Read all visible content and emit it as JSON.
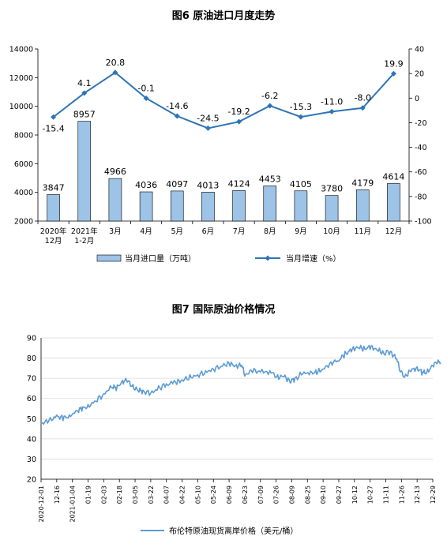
{
  "chart_data": [
    {
      "type": "bar",
      "title": "图6  原油进口月度走势",
      "categories": [
        [
          "2020年",
          "12月"
        ],
        [
          "2021年",
          "1-2月"
        ],
        [
          "3月"
        ],
        [
          "4月"
        ],
        [
          "5月"
        ],
        [
          "6月"
        ],
        [
          "7月"
        ],
        [
          "8月"
        ],
        [
          "9月"
        ],
        [
          "10月"
        ],
        [
          "11月"
        ],
        [
          "12月"
        ]
      ],
      "ylim": [
        2000,
        14000
      ],
      "yticks": [
        2000,
        4000,
        6000,
        8000,
        10000,
        12000,
        14000
      ],
      "y2lim": [
        -100,
        40
      ],
      "y2ticks": [
        -100,
        -80,
        -60,
        -40,
        -20,
        0,
        20,
        40
      ],
      "series": [
        {
          "name": "当月进口量（万吨）",
          "kind": "bar",
          "axis": "left",
          "color": "#9DC3E6",
          "values": [
            3847,
            8957,
            4966,
            4036,
            4097,
            4013,
            4124,
            4453,
            4105,
            3780,
            4179,
            4614
          ],
          "labels": [
            "3847",
            "8957",
            "4966",
            "4036",
            "4097",
            "4013",
            "4124",
            "4453",
            "4105",
            "3780",
            "4179",
            "4614"
          ]
        },
        {
          "name": "当月增速（%）",
          "kind": "line",
          "axis": "right",
          "color": "#2E75B6",
          "values": [
            -15.4,
            4.1,
            20.8,
            -0.1,
            -14.6,
            -24.5,
            -19.2,
            -6.2,
            -15.3,
            -11.0,
            -8.0,
            19.9
          ],
          "labels": [
            "-15.4",
            "4.1",
            "20.8",
            "-0.1",
            "-14.6",
            "-24.5",
            "-19.2",
            "-6.2",
            "-15.3",
            "-11.0",
            "-8.0",
            "19.9"
          ]
        }
      ],
      "legend": "bottom",
      "grid": false
    },
    {
      "type": "line",
      "title": "图7  国际原油价格情况",
      "ylim": [
        20,
        90
      ],
      "yticks": [
        20,
        30,
        40,
        50,
        60,
        70,
        80,
        90
      ],
      "grid": true,
      "legend": "bottom",
      "x_ticks": [
        "2020-12-01",
        "12-16",
        "2021-01-04",
        "01-19",
        "02-03",
        "02-18",
        "03-05",
        "03-22",
        "04-07",
        "04-22",
        "05-10",
        "05-24",
        "06-09",
        "06-23",
        "07-09",
        "07-26",
        "08-09",
        "08-25",
        "09-10",
        "09-27",
        "10-12",
        "10-27",
        "11-11",
        "11-26",
        "12-13",
        "12-29"
      ],
      "series": [
        {
          "name": "布伦特原油现货离岸价格（美元/桶）",
          "color": "#5B9BD5",
          "anchors": [
            [
              0,
              47.5
            ],
            [
              0.5,
              49
            ],
            [
              1,
              51
            ],
            [
              1.4,
              50.5
            ],
            [
              1.8,
              51
            ],
            [
              2.3,
              54
            ],
            [
              2.6,
              55
            ],
            [
              3,
              56
            ],
            [
              3.5,
              59
            ],
            [
              4,
              62
            ],
            [
              4.5,
              66
            ],
            [
              4.8,
              65
            ],
            [
              5.2,
              68.5
            ],
            [
              5.5,
              69
            ],
            [
              5.8,
              66
            ],
            [
              6.2,
              64
            ],
            [
              6.5,
              63.5
            ],
            [
              7,
              62.5
            ],
            [
              7.5,
              65
            ],
            [
              8,
              67
            ],
            [
              8.6,
              68
            ],
            [
              9,
              69
            ],
            [
              9.5,
              70.5
            ],
            [
              10,
              71.5
            ],
            [
              10.5,
              73
            ],
            [
              11,
              74.5
            ],
            [
              11.5,
              76
            ],
            [
              12,
              77.5
            ],
            [
              12.4,
              76
            ],
            [
              12.8,
              76.5
            ],
            [
              13.0,
              71.5
            ],
            [
              13.5,
              74
            ],
            [
              14,
              73
            ],
            [
              14.6,
              73.5
            ],
            [
              15.1,
              70.5
            ],
            [
              15.5,
              71
            ],
            [
              15.9,
              68.5
            ],
            [
              16.2,
              69.5
            ],
            [
              16.7,
              72.5
            ],
            [
              17.2,
              72.5
            ],
            [
              17.6,
              73
            ],
            [
              18,
              74.5
            ],
            [
              18.5,
              77.5
            ],
            [
              19,
              79
            ],
            [
              19.4,
              82
            ],
            [
              19.8,
              84
            ],
            [
              20.2,
              85.5
            ],
            [
              20.6,
              84.5
            ],
            [
              21,
              85.5
            ],
            [
              21.4,
              84.5
            ],
            [
              21.8,
              82.5
            ],
            [
              22.3,
              83
            ],
            [
              22.7,
              79.5
            ],
            [
              22.9,
              74
            ],
            [
              23.2,
              70.5
            ],
            [
              23.6,
              74
            ],
            [
              24,
              75
            ],
            [
              24.3,
              73
            ],
            [
              24.6,
              72.5
            ],
            [
              25,
              76.5
            ],
            [
              25.3,
              78
            ],
            [
              25.5,
              77.5
            ]
          ]
        }
      ]
    }
  ]
}
